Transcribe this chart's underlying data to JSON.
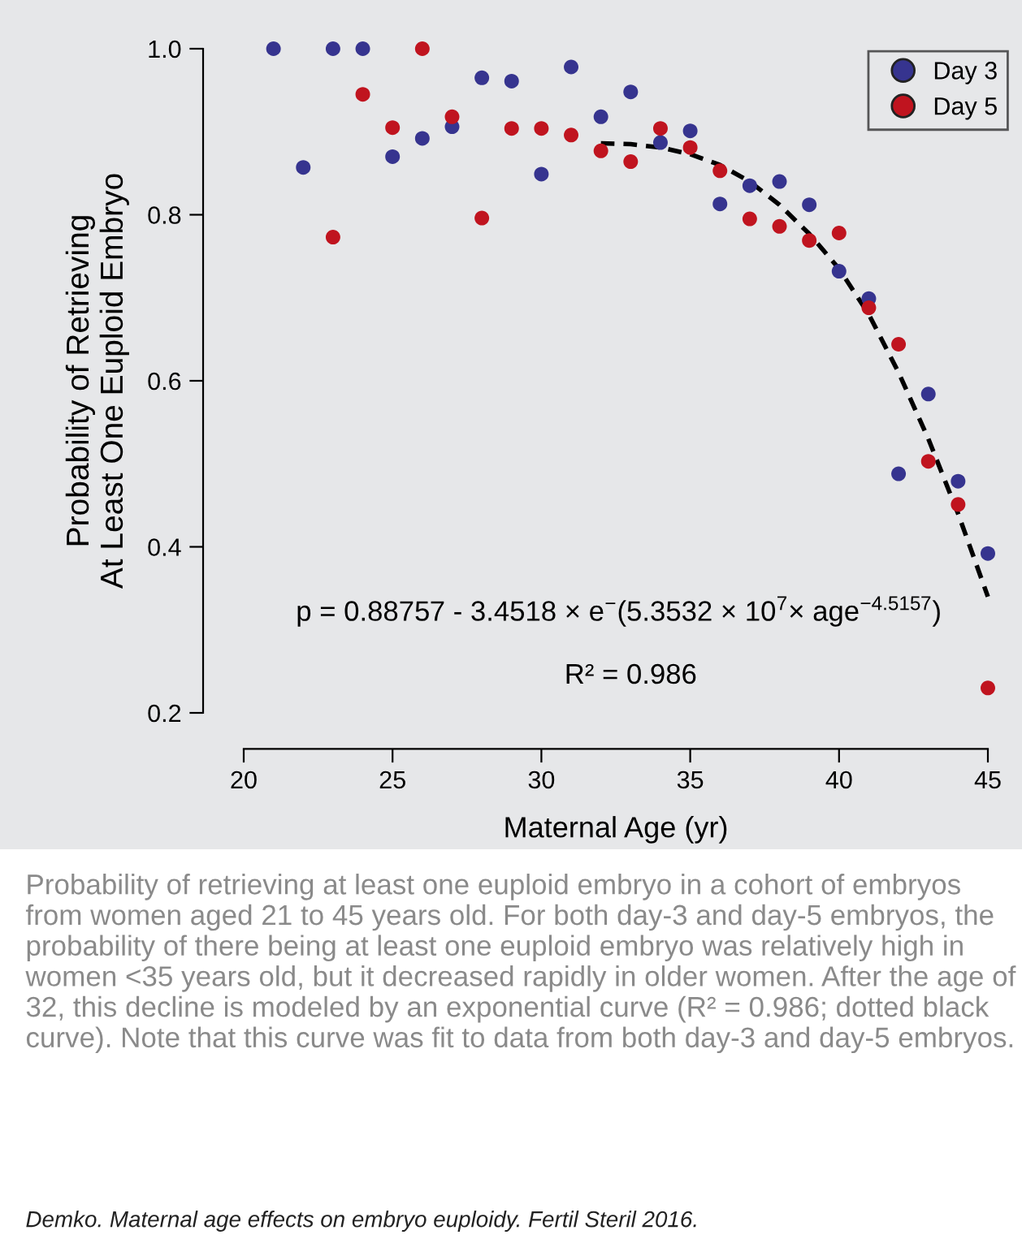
{
  "chart_data": {
    "type": "scatter",
    "xlabel": "Maternal Age (yr)",
    "ylabel": "Probability of Retrieving\nAt Least One Euploid Embryo",
    "series": [
      {
        "name": "Day 3",
        "color": "#36348f",
        "x": [
          21,
          22,
          23,
          24,
          25,
          26,
          27,
          28,
          29,
          30,
          31,
          32,
          33,
          34,
          35,
          36,
          37,
          38,
          39,
          40,
          41,
          42,
          43,
          44,
          45
        ],
        "values": [
          1.0,
          0.857,
          1.0,
          1.0,
          0.87,
          0.892,
          0.906,
          0.965,
          0.961,
          0.849,
          0.978,
          0.918,
          0.948,
          0.887,
          0.901,
          0.813,
          0.835,
          0.84,
          0.812,
          0.732,
          0.699,
          0.488,
          0.584,
          0.479,
          0.392
        ]
      },
      {
        "name": "Day 5",
        "color": "#c0141f",
        "x": [
          23,
          24,
          25,
          26,
          27,
          28,
          29,
          30,
          31,
          32,
          33,
          34,
          35,
          36,
          37,
          38,
          39,
          40,
          41,
          42,
          43,
          44,
          45
        ],
        "values": [
          0.773,
          0.945,
          0.905,
          1.0,
          0.918,
          0.796,
          0.904,
          0.904,
          0.896,
          0.877,
          0.864,
          0.904,
          0.881,
          0.853,
          0.795,
          0.786,
          0.769,
          0.778,
          0.688,
          0.644,
          0.503,
          0.451,
          0.23
        ]
      },
      {
        "type": "line",
        "color": "#000000",
        "line_style": "dashed",
        "marker": "none",
        "x": [
          32,
          33,
          34,
          35,
          36,
          37,
          38,
          39,
          40,
          41,
          42,
          43,
          44,
          45
        ],
        "values": [
          0.886,
          0.885,
          0.881,
          0.873,
          0.86,
          0.84,
          0.812,
          0.777,
          0.735,
          0.68,
          0.61,
          0.53,
          0.44,
          0.34
        ]
      }
    ],
    "marker": "circle",
    "xlim": [
      20,
      45
    ],
    "xticks": [
      20,
      25,
      30,
      35,
      40,
      45
    ],
    "ylim": [
      0.2,
      1.0
    ],
    "yticks": [
      0.2,
      0.4,
      0.6,
      0.8,
      {
        "value": 1,
        "label": "1.0"
      }
    ],
    "grid": false,
    "legend": "top right",
    "annotations": [
      "p = 0.88757 - 3.4518 × e$^{−}$(5.3532 × 10$^{7}$× age$^{−4.5157}$)",
      "R² = 0.986",
      "Probability of retrieving at least one euploid embryo in a cohort of embryos from women aged 21 to 45 years old. For both day-3 and day-5 embryos, the probability of there being at least one euploid embryo was relatively high in women <35 years old, but it decreased rapidly in older women. After the age of 32, this decline is modeled by an exponential curve (R² = 0.986; dotted black curve). Note that this curve was fit to data from both day-3 and day-5 embryos.",
      "Demko. Maternal age effects on embryo euploidy. Fertil Steril 2016."
    ]
  }
}
